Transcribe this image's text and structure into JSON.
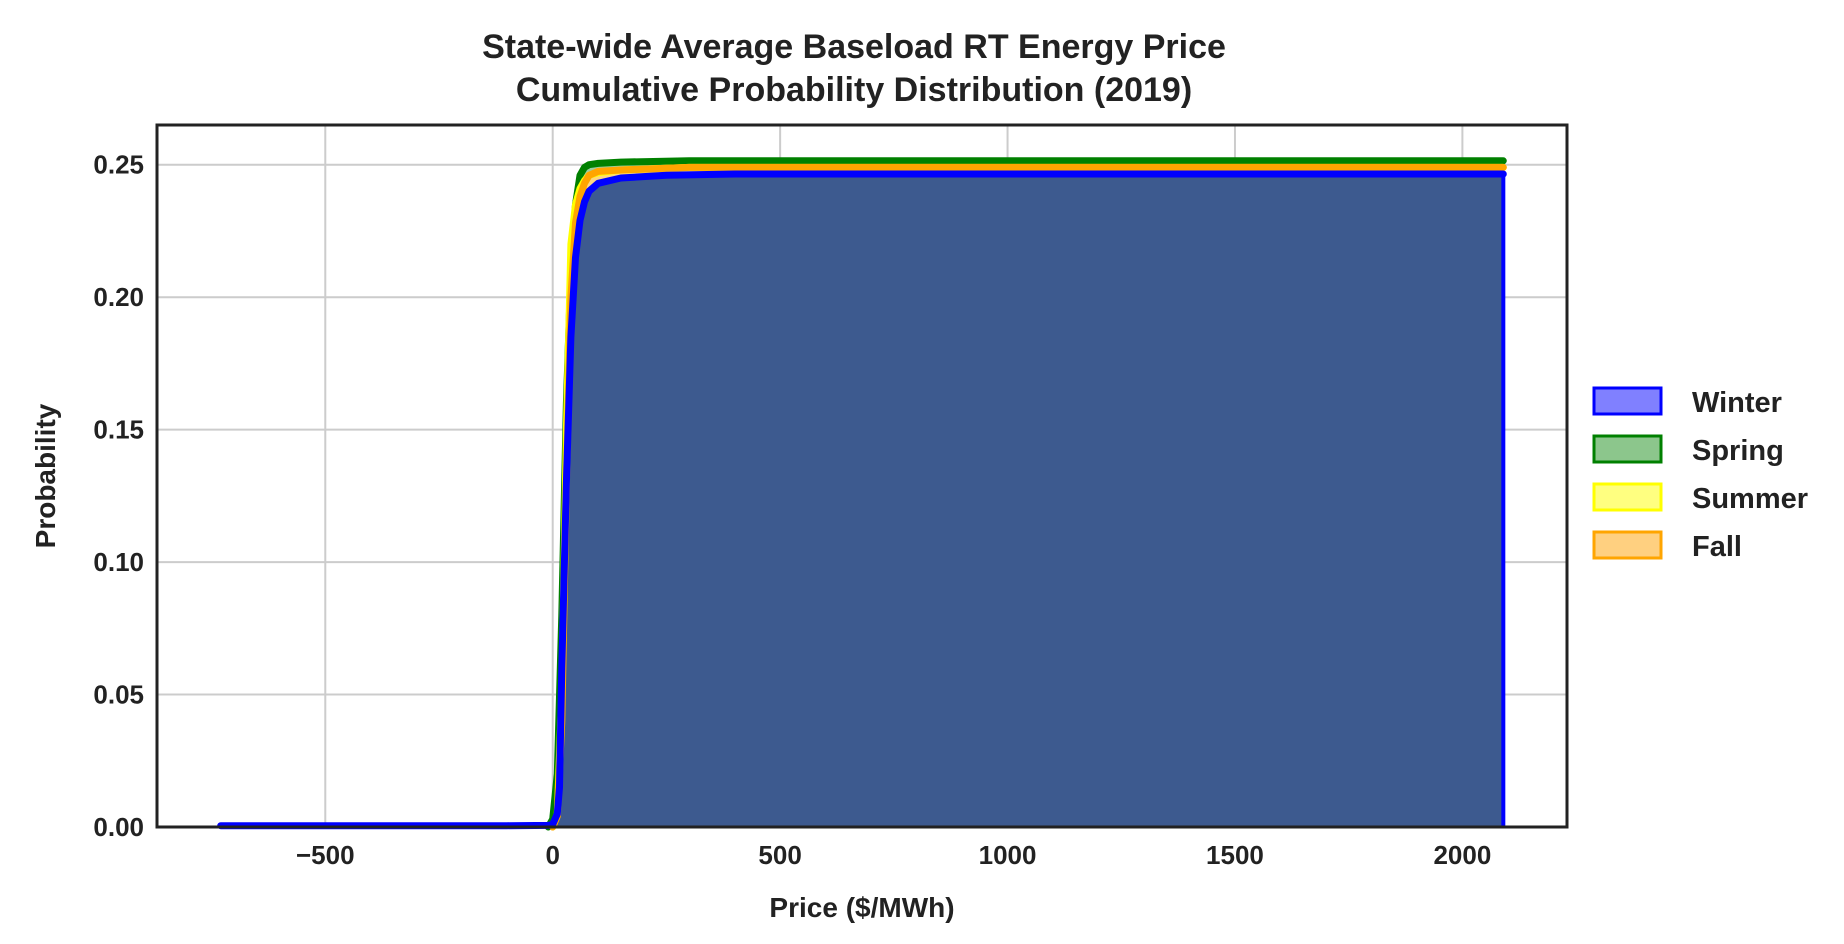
{
  "chart_data": {
    "type": "area",
    "title": [
      "State-wide Average Baseload RT Energy Price",
      "Cumulative Probability Distribution (2019)"
    ],
    "xlabel": "Price ($/MWh)",
    "ylabel": "Probability",
    "xlim": [
      -870,
      2230
    ],
    "ylim": [
      0,
      0.265
    ],
    "xticks": [
      -500,
      0,
      500,
      1000,
      1500,
      2000
    ],
    "xtick_labels": [
      "−500",
      "0",
      "500",
      "1000",
      "1500",
      "2000"
    ],
    "yticks": [
      0,
      0.05,
      0.1,
      0.15,
      0.2,
      0.25
    ],
    "ytick_labels": [
      "0.00",
      "0.05",
      "0.10",
      "0.15",
      "0.20",
      "0.25"
    ],
    "grid": true,
    "legend_position": "right",
    "series": [
      {
        "name": "Spring",
        "line_color": "#008000",
        "fill_color": "#8cc68c",
        "x": [
          -10,
          0,
          10,
          20,
          30,
          40,
          50,
          60,
          70,
          80,
          100,
          150,
          300,
          2090
        ],
        "y": [
          0,
          0.003,
          0.02,
          0.08,
          0.16,
          0.21,
          0.235,
          0.246,
          0.249,
          0.25,
          0.2505,
          0.251,
          0.2515,
          0.2515
        ]
      },
      {
        "name": "Summer",
        "line_color": "#ffff00",
        "fill_color": "#ffff80",
        "x": [
          0,
          10,
          20,
          30,
          40,
          50,
          60,
          70,
          80,
          100,
          150,
          300,
          2090
        ],
        "y": [
          0,
          0.005,
          0.05,
          0.15,
          0.22,
          0.235,
          0.241,
          0.244,
          0.246,
          0.247,
          0.248,
          0.249,
          0.249
        ]
      },
      {
        "name": "Fall",
        "line_color": "#ffa500",
        "fill_color": "#ffd080",
        "x": [
          0,
          10,
          20,
          30,
          40,
          50,
          60,
          70,
          80,
          100,
          150,
          300,
          2090
        ],
        "y": [
          0,
          0.004,
          0.04,
          0.13,
          0.2,
          0.228,
          0.238,
          0.243,
          0.246,
          0.2475,
          0.248,
          0.249,
          0.249
        ]
      },
      {
        "name": "Winter",
        "line_color": "#0000ff",
        "fill_color": "#8080ff",
        "x": [
          -730,
          -400,
          -100,
          -10,
          0,
          10,
          15,
          20,
          30,
          40,
          50,
          60,
          70,
          80,
          100,
          150,
          250,
          400,
          2090
        ],
        "y": [
          0.0005,
          0.0005,
          0.0005,
          0.0006,
          0.001,
          0.005,
          0.015,
          0.06,
          0.13,
          0.185,
          0.215,
          0.229,
          0.236,
          0.24,
          0.243,
          0.245,
          0.246,
          0.2465,
          0.2465
        ]
      }
    ],
    "legend_order": [
      "Winter",
      "Spring",
      "Summer",
      "Fall"
    ],
    "overlap_fill_color": "#3d5a8f"
  }
}
